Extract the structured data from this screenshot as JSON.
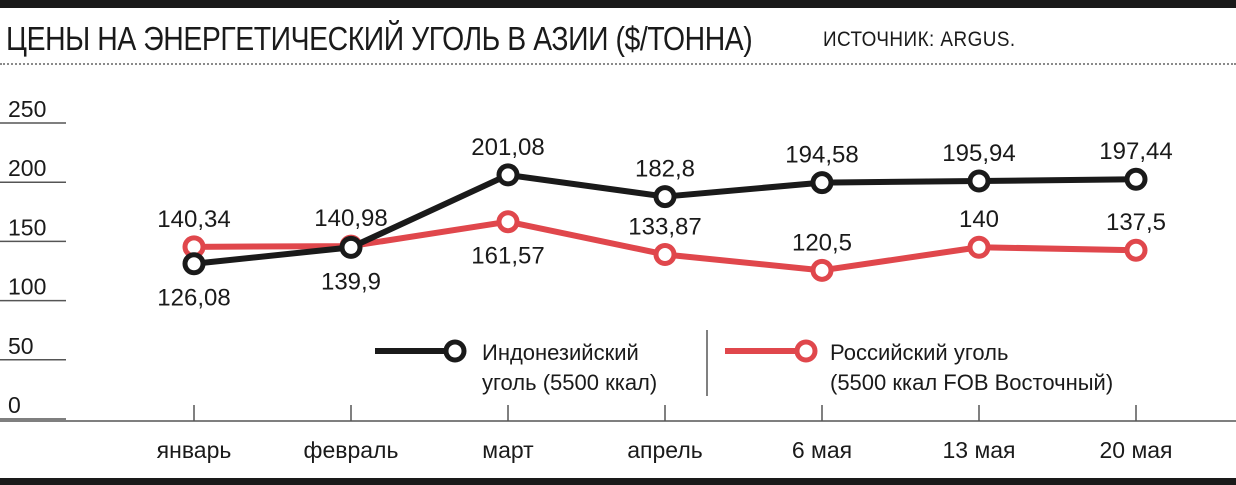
{
  "header": {
    "title": "ЦЕНЫ НА ЭНЕРГЕТИЧЕСКИЙ УГОЛЬ В АЗИИ ($/ТОННА)",
    "source": "ИСТОЧНИК: ARGUS."
  },
  "chart_data": {
    "type": "line",
    "title": "ЦЕНЫ НА ЭНЕРГЕТИЧЕСКИЙ УГОЛЬ В АЗИИ ($/ТОННА)",
    "categories": [
      "январь",
      "февраль",
      "март",
      "апрель",
      "6 мая",
      "13 мая",
      "20 мая"
    ],
    "ylim": [
      0,
      250
    ],
    "yticks": [
      0,
      50,
      100,
      150,
      200,
      250
    ],
    "grid": false,
    "legend_position": "bottom-right",
    "series": [
      {
        "name": "Индонезийский уголь (5500 ккал)",
        "legend_lines": [
          "Индонезийский",
          "уголь (5500 ккал)"
        ],
        "color": "#1a1a1a",
        "values": [
          126.08,
          139.9,
          201.08,
          182.8,
          194.58,
          195.94,
          197.44
        ],
        "labels": [
          "126,08",
          "139,9",
          "201,08",
          "182,8",
          "194,58",
          "195,94",
          "197,44"
        ]
      },
      {
        "name": "Российский уголь (5500 ккал FOB Восточный)",
        "legend_lines": [
          "Российский уголь",
          "(5500 ккал FOB Восточный)"
        ],
        "color": "#e0474c",
        "values": [
          140.34,
          140.98,
          161.57,
          133.87,
          120.5,
          140,
          137.5
        ],
        "labels": [
          "140,34",
          "140,98",
          "161,57",
          "133,87",
          "120,5",
          "140",
          "137,5"
        ]
      }
    ]
  }
}
